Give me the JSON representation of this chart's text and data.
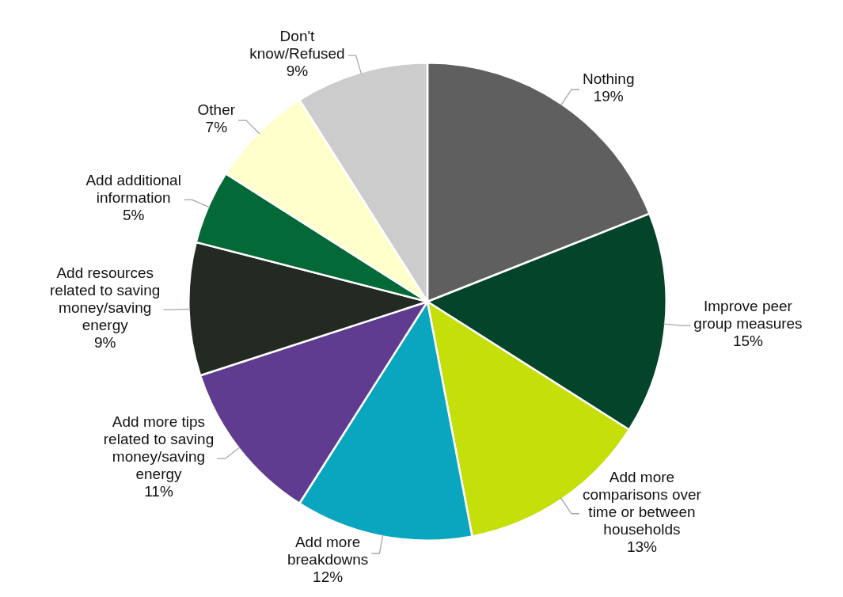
{
  "chart_data": {
    "type": "pie",
    "categories": [
      "Nothing",
      "Improve peer\ngroup measures",
      "Add more\ncomparisons over\ntime or between\nhouseholds",
      "Add more\nbreakdowns",
      "Add more tips\nrelated to saving\nmoney/saving\nenergy",
      "Add resources\nrelated to saving\nmoney/saving\nenergy",
      "Add additional\ninformation",
      "Other",
      "Don't\nknow/Refused"
    ],
    "values": [
      19,
      15,
      13,
      12,
      11,
      9,
      5,
      7,
      9
    ],
    "value_labels": [
      "19%",
      "15%",
      "13%",
      "12%",
      "11%",
      "9%",
      "5%",
      "7%",
      "9%"
    ],
    "colors": [
      "#5f5f5f",
      "#03442a",
      "#c4df09",
      "#0aa5bf",
      "#5f3c8f",
      "#222a22",
      "#036936",
      "#ffffcc",
      "#cccccc"
    ],
    "legend": false
  }
}
